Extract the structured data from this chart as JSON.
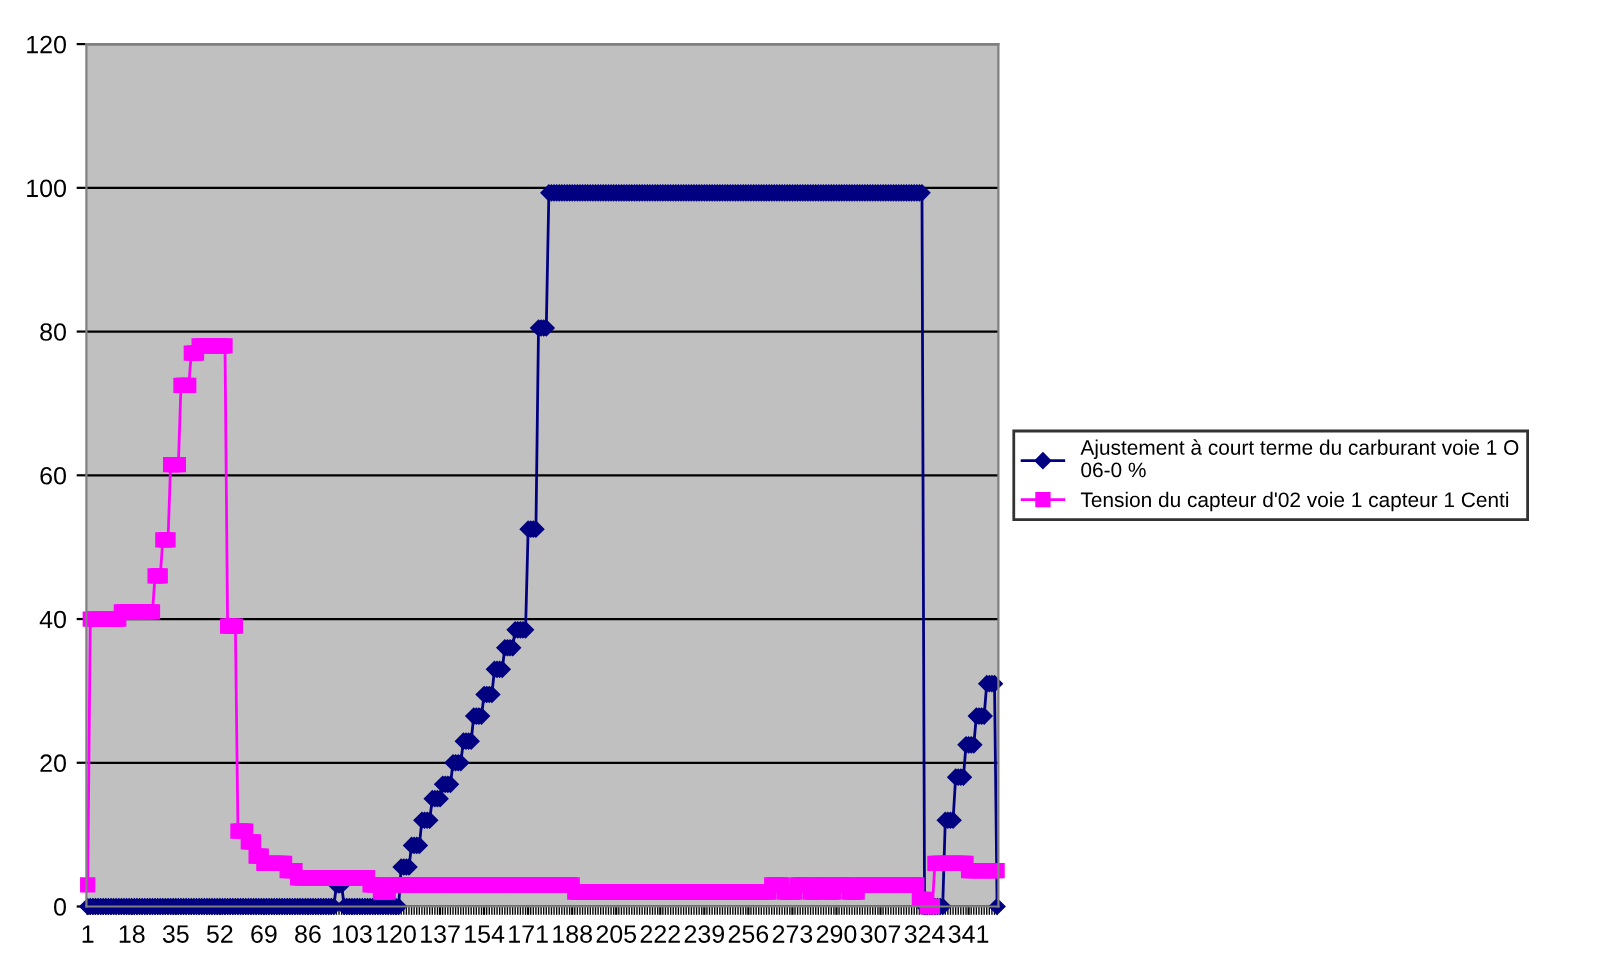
{
  "chart_data": {
    "type": "line",
    "categories": [
      "1",
      null,
      null,
      null,
      null,
      null,
      null,
      null,
      null,
      null,
      null,
      null,
      null,
      null,
      null,
      null,
      null,
      "18",
      null,
      null,
      null,
      null,
      null,
      null,
      null,
      null,
      null,
      null,
      null,
      null,
      null,
      null,
      null,
      null,
      "35",
      null,
      null,
      null,
      null,
      null,
      null,
      null,
      null,
      null,
      null,
      null,
      null,
      null,
      null,
      null,
      null,
      "52",
      null,
      null,
      null,
      null,
      null,
      null,
      null,
      null,
      null,
      null,
      null,
      null,
      null,
      null,
      null,
      null,
      "69",
      null,
      null,
      null,
      null,
      null,
      null,
      null,
      null,
      null,
      null,
      null,
      null,
      null,
      null,
      null,
      null,
      "86",
      null,
      null,
      null,
      null,
      null,
      null,
      null,
      null,
      null,
      null,
      null,
      null,
      null,
      null,
      null,
      null,
      "103",
      null,
      null,
      null,
      null,
      null,
      null,
      null,
      null,
      null,
      null,
      null,
      null,
      null,
      null,
      null,
      null,
      "120",
      null,
      null,
      null,
      null,
      null,
      null,
      null,
      null,
      null,
      null,
      null,
      null,
      null,
      null,
      null,
      null,
      "137",
      null,
      null,
      null,
      null,
      null,
      null,
      null,
      null,
      null,
      null,
      null,
      null,
      null,
      null,
      null,
      null,
      "154",
      null,
      null,
      null,
      null,
      null,
      null,
      null,
      null,
      null,
      null,
      null,
      null,
      null,
      null,
      null,
      null,
      "171",
      null,
      null,
      null,
      null,
      null,
      null,
      null,
      null,
      null,
      null,
      null,
      null,
      null,
      null,
      null,
      null,
      "188",
      null,
      null,
      null,
      null,
      null,
      null,
      null,
      null,
      null,
      null,
      null,
      null,
      null,
      null,
      null,
      null,
      "205",
      null,
      null,
      null,
      null,
      null,
      null,
      null,
      null,
      null,
      null,
      null,
      null,
      null,
      null,
      null,
      null,
      "222",
      null,
      null,
      null,
      null,
      null,
      null,
      null,
      null,
      null,
      null,
      null,
      null,
      null,
      null,
      null,
      null,
      "239",
      null,
      null,
      null,
      null,
      null,
      null,
      null,
      null,
      null,
      null,
      null,
      null,
      null,
      null,
      null,
      null,
      "256",
      null,
      null,
      null,
      null,
      null,
      null,
      null,
      null,
      null,
      null,
      null,
      null,
      null,
      null,
      null,
      null,
      "273",
      null,
      null,
      null,
      null,
      null,
      null,
      null,
      null,
      null,
      null,
      null,
      null,
      null,
      null,
      null,
      null,
      "290",
      null,
      null,
      null,
      null,
      null,
      null,
      null,
      null,
      null,
      null,
      null,
      null,
      null,
      null,
      null,
      null,
      "307",
      null,
      null,
      null,
      null,
      null,
      null,
      null,
      null,
      null,
      null,
      null,
      null,
      null,
      null,
      null,
      null,
      "324",
      null,
      null,
      null,
      null,
      null,
      null,
      null,
      null,
      null,
      null,
      null,
      null,
      null,
      null,
      null,
      null,
      "341",
      null,
      null,
      null,
      null,
      null,
      null,
      null,
      null,
      null,
      null,
      null
    ],
    "series": [
      {
        "name": "Ajustement à court terme du carburant voie 1 O\n06-0 %",
        "color": "#000080",
        "marker": "diamond",
        "values": [
          0,
          0,
          0,
          0,
          0,
          0,
          0,
          0,
          0,
          0,
          0,
          0,
          0,
          0,
          0,
          0,
          0,
          0,
          0,
          0,
          0,
          0,
          0,
          0,
          0,
          0,
          0,
          0,
          0,
          0,
          0,
          0,
          0,
          0,
          0,
          0,
          0,
          0,
          0,
          0,
          0,
          0,
          0,
          0,
          0,
          0,
          0,
          0,
          0,
          0,
          0,
          0,
          0,
          0,
          0,
          0,
          0,
          0,
          0,
          0,
          0,
          0,
          0,
          0,
          0,
          0,
          0,
          0,
          0,
          0,
          0,
          0,
          0,
          0,
          0,
          0,
          0,
          0,
          0,
          0,
          0,
          0,
          0,
          0,
          0,
          0,
          0,
          0,
          0,
          0,
          0,
          0,
          0,
          0,
          0,
          0,
          3,
          3,
          3,
          0,
          0,
          0,
          0,
          0,
          0,
          0,
          0,
          0,
          0,
          0,
          0,
          0,
          0,
          0,
          0,
          0,
          0,
          0,
          0,
          0,
          0,
          5.5,
          5.5,
          5.5,
          5.5,
          8.5,
          8.5,
          8.5,
          8.5,
          12,
          12,
          12,
          12,
          15,
          15,
          15,
          15,
          17,
          17,
          17,
          17,
          20,
          20,
          20,
          20,
          23,
          23,
          23,
          23,
          26.5,
          26.5,
          26.5,
          26.5,
          29.5,
          29.5,
          29.5,
          29.5,
          33,
          33,
          33,
          33,
          36,
          36,
          36,
          36,
          38.5,
          38.5,
          38.5,
          38.5,
          38.5,
          52.5,
          52.5,
          52.5,
          52.5,
          80.5,
          80.5,
          80.5,
          80.5,
          99.3,
          99.3,
          99.3,
          99.3,
          99.3,
          99.3,
          99.3,
          99.3,
          99.3,
          99.3,
          99.3,
          99.3,
          99.3,
          99.3,
          99.3,
          99.3,
          99.3,
          99.3,
          99.3,
          99.3,
          99.3,
          99.3,
          99.3,
          99.3,
          99.3,
          99.3,
          99.3,
          99.3,
          99.3,
          99.3,
          99.3,
          99.3,
          99.3,
          99.3,
          99.3,
          99.3,
          99.3,
          99.3,
          99.3,
          99.3,
          99.3,
          99.3,
          99.3,
          99.3,
          99.3,
          99.3,
          99.3,
          99.3,
          99.3,
          99.3,
          99.3,
          99.3,
          99.3,
          99.3,
          99.3,
          99.3,
          99.3,
          99.3,
          99.3,
          99.3,
          99.3,
          99.3,
          99.3,
          99.3,
          99.3,
          99.3,
          99.3,
          99.3,
          99.3,
          99.3,
          99.3,
          99.3,
          99.3,
          99.3,
          99.3,
          99.3,
          99.3,
          99.3,
          99.3,
          99.3,
          99.3,
          99.3,
          99.3,
          99.3,
          99.3,
          99.3,
          99.3,
          99.3,
          99.3,
          99.3,
          99.3,
          99.3,
          99.3,
          99.3,
          99.3,
          99.3,
          99.3,
          99.3,
          99.3,
          99.3,
          99.3,
          99.3,
          99.3,
          99.3,
          99.3,
          99.3,
          99.3,
          99.3,
          99.3,
          99.3,
          99.3,
          99.3,
          99.3,
          99.3,
          99.3,
          99.3,
          99.3,
          99.3,
          99.3,
          99.3,
          99.3,
          99.3,
          99.3,
          99.3,
          99.3,
          99.3,
          99.3,
          99.3,
          99.3,
          99.3,
          99.3,
          99.3,
          99.3,
          99.3,
          99.3,
          99.3,
          99.3,
          99.3,
          99.3,
          99.3,
          99.3,
          99.3,
          99.3,
          99.3,
          99.3,
          0,
          0,
          0,
          0,
          0,
          0,
          0,
          0,
          12,
          12,
          12,
          12,
          18,
          18,
          18,
          18,
          22.5,
          22.5,
          22.5,
          22.5,
          26.5,
          26.5,
          26.5,
          26.5,
          31,
          31,
          31,
          31,
          0
        ]
      },
      {
        "name": "Tension du capteur d'02 voie 1 capteur 1 Centi",
        "color": "#ff00ff",
        "marker": "square",
        "values": [
          3,
          40,
          40,
          40,
          40,
          40,
          40,
          40,
          40,
          40,
          40,
          40,
          40,
          41,
          41,
          41,
          41,
          41,
          41,
          41,
          41,
          41,
          41,
          41,
          41,
          41,
          46,
          46,
          46,
          51,
          51,
          51,
          61.5,
          61.5,
          61.5,
          61.5,
          72.5,
          72.5,
          72.5,
          72.5,
          77,
          77,
          77,
          78,
          78,
          78,
          78,
          78,
          78,
          78,
          78,
          78,
          78,
          78,
          39,
          39,
          39,
          39,
          10.5,
          10.5,
          10.5,
          10.5,
          9,
          9,
          9,
          7,
          7,
          7,
          6,
          6,
          6,
          6,
          6,
          6,
          6,
          6,
          6,
          5,
          5,
          5,
          5,
          4,
          4,
          4,
          4,
          4,
          4,
          4,
          4,
          4,
          4,
          4,
          4,
          4,
          4,
          4,
          4,
          4,
          4,
          4,
          4,
          4,
          4,
          4,
          4,
          4,
          4,
          4,
          4,
          3,
          3,
          3,
          3,
          2,
          2,
          2,
          2,
          3,
          3,
          3,
          3,
          3,
          3,
          3,
          3,
          3,
          3,
          3,
          3,
          3,
          3,
          3,
          3,
          3,
          3,
          3,
          3,
          3,
          3,
          3,
          3,
          3,
          3,
          3,
          3,
          3,
          3,
          3,
          3,
          3,
          3,
          3,
          3,
          3,
          3,
          3,
          3,
          3,
          3,
          3,
          3,
          3,
          3,
          3,
          3,
          3,
          3,
          3,
          3,
          3,
          3,
          3,
          3,
          3,
          3,
          3,
          3,
          3,
          3,
          3,
          3,
          3,
          3,
          3,
          3,
          3,
          3,
          3,
          2,
          2,
          2,
          2,
          2,
          2,
          2,
          2,
          2,
          2,
          2,
          2,
          2,
          2,
          2,
          2,
          2,
          2,
          2,
          2,
          2,
          2,
          2,
          2,
          2,
          2,
          2,
          2,
          2,
          2,
          2,
          2,
          2,
          2,
          2,
          2,
          2,
          2,
          2,
          2,
          2,
          2,
          2,
          2,
          2,
          2,
          2,
          2,
          2,
          2,
          2,
          2,
          2,
          2,
          2,
          2,
          2,
          2,
          2,
          2,
          2,
          2,
          2,
          2,
          2,
          2,
          2,
          2,
          2,
          2,
          2,
          2,
          2,
          2,
          2,
          2,
          3,
          3,
          3,
          3,
          3,
          2,
          2,
          2,
          2,
          2,
          3,
          3,
          3,
          3,
          3,
          2,
          2,
          2,
          3,
          3,
          3,
          3,
          2,
          2,
          2,
          3,
          3,
          3,
          3,
          3,
          2,
          2,
          2,
          2,
          3,
          3,
          3,
          3,
          3,
          3,
          3,
          3,
          3,
          3,
          3,
          3,
          3,
          3,
          3,
          3,
          3,
          3,
          3,
          3,
          3,
          3,
          3,
          1,
          1,
          1,
          0,
          0,
          0,
          6,
          6,
          6,
          6,
          6,
          6,
          6,
          6,
          6,
          6,
          6,
          6,
          6,
          5,
          5,
          5,
          5,
          5,
          5,
          5,
          5,
          5,
          5,
          5,
          5
        ]
      }
    ],
    "ylim": [
      0,
      120
    ],
    "yticks": [
      0,
      20,
      40,
      60,
      80,
      100,
      120
    ],
    "grid": "y",
    "legend": "right",
    "line_style": "solid"
  }
}
